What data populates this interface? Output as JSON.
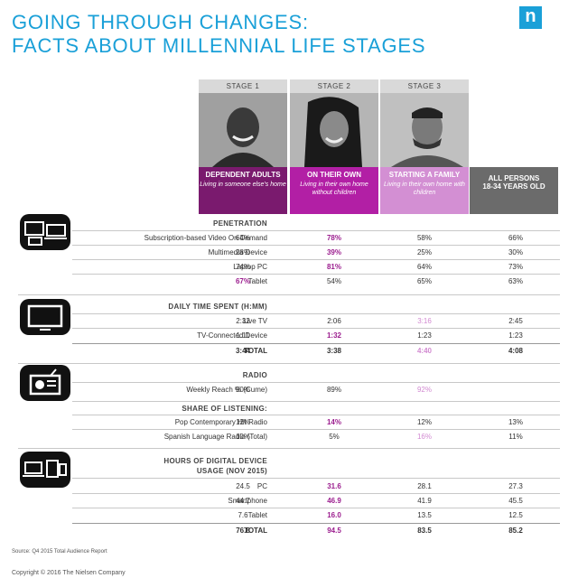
{
  "title": {
    "line1": "GOING THROUGH CHANGES:",
    "line2": "FACTS ABOUT MILLENNIAL LIFE STAGES"
  },
  "logo": "n",
  "stages": [
    {
      "label": "STAGE 1",
      "title": "DEPENDENT ADULTS",
      "subtitle": "Living in someone else's home",
      "color": "#7a1a6e"
    },
    {
      "label": "STAGE 2",
      "title": "ON THEIR OWN",
      "subtitle": "Living in their own home without children",
      "color": "#b21fa5"
    },
    {
      "label": "STAGE 3",
      "title": "STARTING A FAMILY",
      "subtitle": "Living in their own home with children",
      "color": "#d38fd3"
    },
    {
      "label": "",
      "title": "ALL PERSONS 18-34 YEARS OLD",
      "subtitle": "",
      "color": "#6b6b6b"
    }
  ],
  "sections": {
    "penetration": {
      "heading": "PENETRATION",
      "rows": [
        {
          "label": "Subscription-based Video On Demand",
          "values": [
            "64%",
            "78%",
            "58%",
            "66%"
          ]
        },
        {
          "label": "Multimedia Device",
          "values": [
            "28%",
            "39%",
            "25%",
            "30%"
          ]
        },
        {
          "label": "Laptop PC",
          "values": [
            "74%",
            "81%",
            "64%",
            "73%"
          ]
        },
        {
          "label": "Tablet",
          "values": [
            "67%",
            "54%",
            "65%",
            "63%"
          ]
        }
      ]
    },
    "daily_time": {
      "heading": "DAILY TIME SPENT (H:MM)",
      "rows": [
        {
          "label": "Live TV",
          "values": [
            "2:32",
            "2:06",
            "3:16",
            "2:45"
          ]
        },
        {
          "label": "TV-Connected Device",
          "values": [
            "1:11",
            "1:32",
            "1:23",
            "1:23"
          ]
        },
        {
          "label": "TOTAL",
          "values": [
            "3:44",
            "3:38",
            "4:40",
            "4:08"
          ]
        }
      ]
    },
    "radio": {
      "heading": "RADIO",
      "reach": {
        "label": "Weekly Reach % (Cume)",
        "values": [
          "90%",
          "89%",
          "92%",
          ""
        ]
      },
      "share_heading": "SHARE OF LISTENING:",
      "rows": [
        {
          "label": "Pop Contemporary Hit Radio",
          "values": [
            "12%",
            "14%",
            "12%",
            "13%"
          ]
        },
        {
          "label": "Spanish Language Radio (Total)",
          "values": [
            "10%",
            "5%",
            "16%",
            "11%"
          ]
        }
      ]
    },
    "digital": {
      "heading_line1": "HOURS OF DIGITAL DEVICE",
      "heading_line2": "USAGE (NOV 2015)",
      "rows": [
        {
          "label": "PC",
          "values": [
            "24.5",
            "31.6",
            "28.1",
            "27.3"
          ]
        },
        {
          "label": "Smartphone",
          "values": [
            "44.7",
            "46.9",
            "41.9",
            "45.5"
          ]
        },
        {
          "label": "Tablet",
          "values": [
            "7.6",
            "16.0",
            "13.5",
            "12.5"
          ]
        },
        {
          "label": "TOTAL",
          "values": [
            "76.8",
            "94.5",
            "83.5",
            "85.2"
          ]
        }
      ]
    }
  },
  "source": "Source: Q4 2015 Total Audience Report",
  "copyright": "Copyright © 2016 The Nielsen Company"
}
